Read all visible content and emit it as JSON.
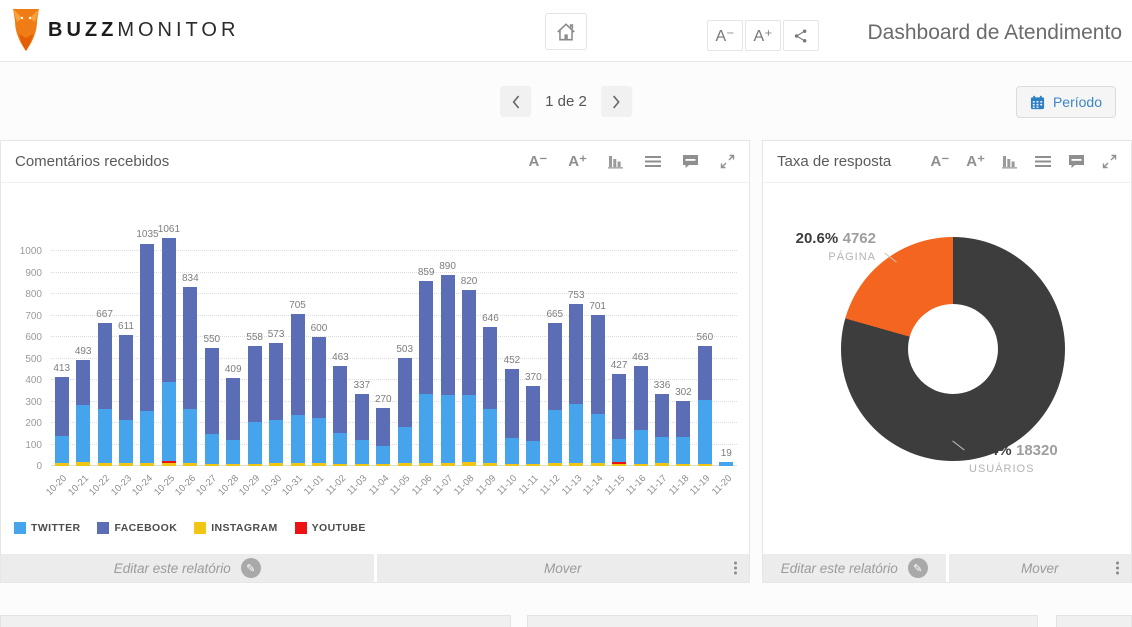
{
  "header": {
    "brand": {
      "bold": "BUZZ",
      "light": "MONITOR"
    },
    "title": "Dashboard de Atendimento"
  },
  "tools": {
    "font_decrease": "A⁻",
    "font_increase": "A⁺"
  },
  "glyphs": {
    "chevron_left": "‹",
    "chevron_right": "›",
    "pencil": "✎"
  },
  "pagination": {
    "current_label": "1 de 2"
  },
  "period_button": {
    "label": "Período"
  },
  "panels": {
    "comments": {
      "title": "Comentários recebidos"
    },
    "response": {
      "title": "Taxa de resposta"
    }
  },
  "panel_footer": {
    "edit_label": "Editar este relatório",
    "move_label": "Mover"
  },
  "chart_data": [
    {
      "type": "bar",
      "stacked": true,
      "title": "Comentários recebidos",
      "xlabel": "",
      "ylabel": "",
      "ylim": [
        0,
        1100
      ],
      "yticks": [
        0,
        100,
        200,
        300,
        400,
        500,
        600,
        700,
        800,
        900,
        1000
      ],
      "grid": "horizontal dotted",
      "legend_position": "bottom-left",
      "categories": [
        "10-20",
        "10-21",
        "10-22",
        "10-23",
        "10-24",
        "10-25",
        "10-26",
        "10-27",
        "10-28",
        "10-29",
        "10-30",
        "10-31",
        "11-01",
        "11-02",
        "11-03",
        "11-04",
        "11-05",
        "11-06",
        "11-07",
        "11-08",
        "11-09",
        "11-10",
        "11-11",
        "11-12",
        "11-13",
        "11-14",
        "11-15",
        "11-16",
        "11-17",
        "11-18",
        "11-19",
        "11-20"
      ],
      "series": [
        {
          "name": "TWITTER",
          "color": "#45a4ec",
          "values": [
            128,
            267,
            250,
            203,
            243,
            365,
            250,
            140,
            112,
            195,
            203,
            223,
            213,
            145,
            112,
            87,
            170,
            320,
            318,
            312,
            250,
            120,
            108,
            248,
            277,
            228,
            108,
            157,
            123,
            125,
            297,
            19
          ]
        },
        {
          "name": "FACEBOOK",
          "color": "#5b6db4",
          "values": [
            273,
            208,
            402,
            396,
            780,
            671,
            569,
            400,
            289,
            353,
            358,
            470,
            375,
            308,
            217,
            175,
            321,
            524,
            560,
            490,
            381,
            322,
            254,
            405,
            464,
            459,
            301,
            296,
            201,
            167,
            253,
            0
          ]
        },
        {
          "name": "INSTAGRAM",
          "color": "#f0c514",
          "values": [
            12,
            18,
            15,
            12,
            12,
            15,
            15,
            10,
            8,
            10,
            12,
            12,
            12,
            10,
            8,
            8,
            12,
            15,
            12,
            18,
            15,
            10,
            8,
            12,
            12,
            14,
            10,
            10,
            12,
            10,
            10,
            0
          ]
        },
        {
          "name": "YOUTUBE",
          "color": "#ec1212",
          "values": [
            0,
            0,
            0,
            0,
            0,
            10,
            0,
            0,
            0,
            0,
            0,
            0,
            0,
            0,
            0,
            0,
            0,
            0,
            0,
            0,
            0,
            0,
            0,
            0,
            0,
            0,
            8,
            0,
            0,
            0,
            0,
            0
          ]
        }
      ],
      "stack_order": [
        "INSTAGRAM",
        "YOUTUBE",
        "TWITTER",
        "FACEBOOK"
      ],
      "totals": [
        413,
        493,
        667,
        611,
        1035,
        1061,
        834,
        550,
        409,
        558,
        573,
        705,
        600,
        463,
        337,
        270,
        503,
        859,
        890,
        820,
        646,
        452,
        370,
        665,
        753,
        701,
        427,
        463,
        336,
        302,
        560,
        19
      ]
    },
    {
      "type": "pie",
      "donut": true,
      "title": "Taxa de resposta",
      "slices": [
        {
          "label": "PÁGINA",
          "percent": 20.6,
          "percent_label": "20.6%",
          "value": 4762,
          "value_label": "4762",
          "color": "#f4661f"
        },
        {
          "label": "USUÁRIOS",
          "percent": 79.4,
          "percent_label": "79.4%",
          "value": 18320,
          "value_label": "18320",
          "color": "#3d3d3d"
        }
      ]
    }
  ]
}
